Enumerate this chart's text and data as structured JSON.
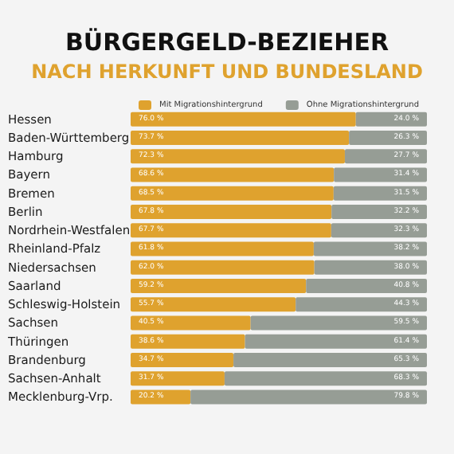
{
  "chart_data": {
    "type": "bar",
    "orientation": "horizontal",
    "stacked": true,
    "title": "BÜRGERGELD-BEZIEHER",
    "subtitle": "NACH HERKUNFT UND BUNDESLAND",
    "categories": [
      "Hessen",
      "Baden-Württemberg",
      "Hamburg",
      "Bayern",
      "Bremen",
      "Berlin",
      "Nordrhein-Westfalen",
      "Rheinland-Pfalz",
      "Niedersachsen",
      "Saarland",
      "Schleswig-Holstein",
      "Sachsen",
      "Thüringen",
      "Brandenburg",
      "Sachsen-Anhalt",
      "Mecklenburg-Vrp."
    ],
    "series": [
      {
        "name": "Mit Migrationshintergrund",
        "color": "#dfa22e",
        "values": [
          76.0,
          73.7,
          72.3,
          68.6,
          68.5,
          67.8,
          67.7,
          61.8,
          62.0,
          59.2,
          55.7,
          40.5,
          38.6,
          34.7,
          31.7,
          20.2
        ],
        "value_labels": [
          "76.0 %",
          "73.7 %",
          "72.3 %",
          "68.6 %",
          "68.5 %",
          "67.8 %",
          "67.7 %",
          "61.8 %",
          "62.0 %",
          "59.2 %",
          "55.7 %",
          "40.5 %",
          "38.6 %",
          "34.7 %",
          "31.7 %",
          "20.2 %"
        ]
      },
      {
        "name": "Ohne Migrationshintergrund",
        "color": "#969d95",
        "values": [
          24.0,
          26.3,
          27.7,
          31.4,
          31.5,
          32.2,
          32.3,
          38.2,
          38.0,
          40.8,
          44.3,
          59.5,
          61.4,
          65.3,
          68.3,
          79.8
        ],
        "value_labels": [
          "24.0 %",
          "26.3 %",
          "27.7 %",
          "31.4 %",
          "31.5 %",
          "32.2 %",
          "32.3 %",
          "38.2 %",
          "38.0 %",
          "40.8 %",
          "44.3 %",
          "59.5 %",
          "61.4 %",
          "65.3 %",
          "68.3 %",
          "79.8 %"
        ]
      }
    ],
    "legend": "top"
  }
}
